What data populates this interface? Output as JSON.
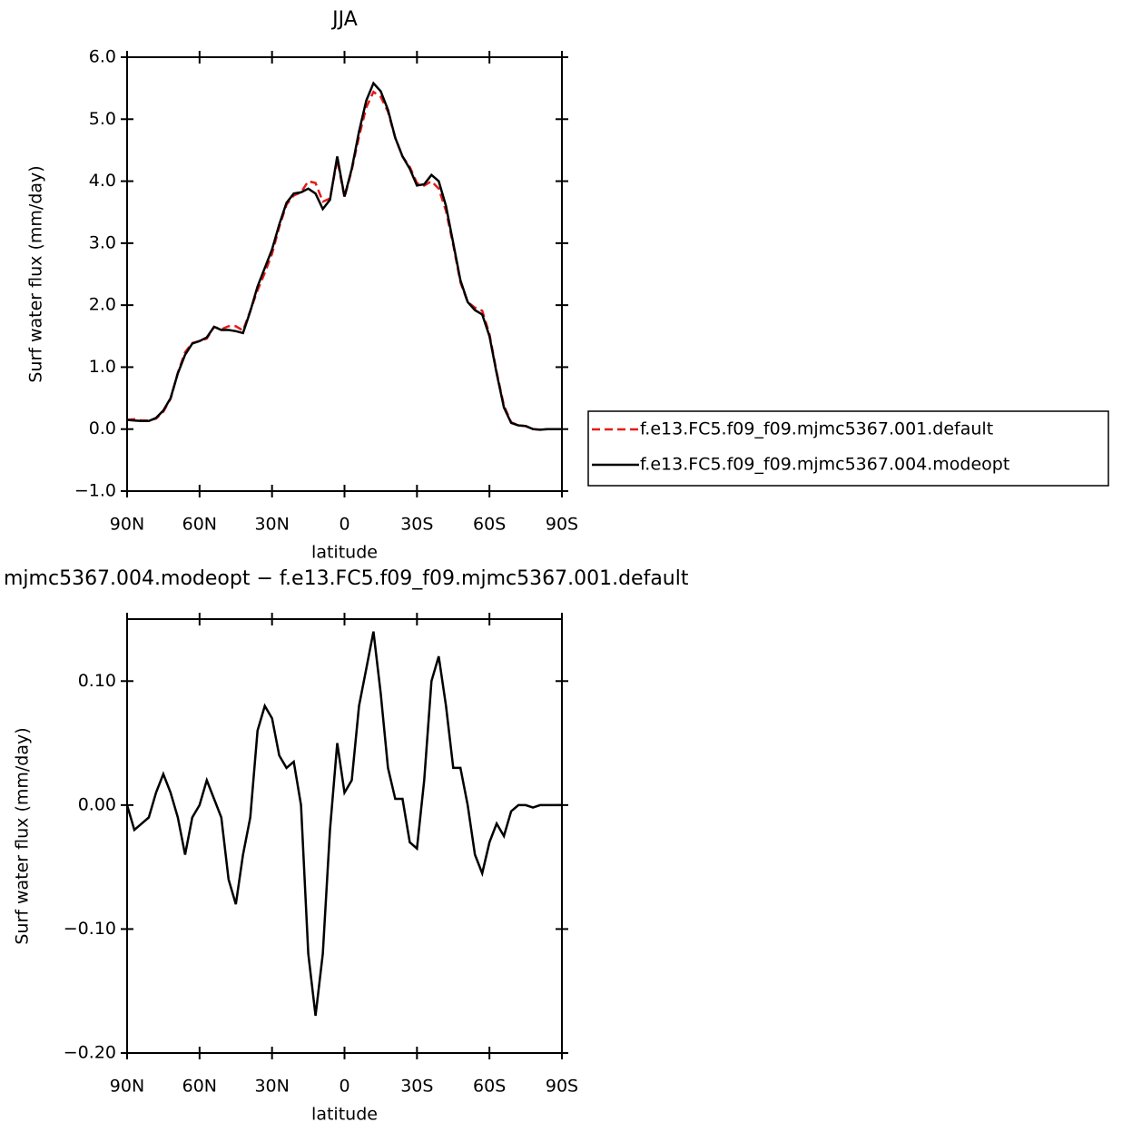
{
  "chart_data": [
    {
      "type": "line",
      "title": "JJA",
      "xlabel": "latitude",
      "ylabel": "Surf water flux (mm/day)",
      "x": [
        90,
        87,
        84,
        81,
        78,
        75,
        72,
        69,
        66,
        63,
        60,
        57,
        54,
        51,
        48,
        45,
        42,
        39,
        36,
        33,
        30,
        27,
        24,
        21,
        18,
        15,
        12,
        9,
        6,
        3,
        0,
        -3,
        -6,
        -9,
        -12,
        -15,
        -18,
        -21,
        -24,
        -27,
        -30,
        -33,
        -36,
        -39,
        -42,
        -45,
        -48,
        -51,
        -54,
        -57,
        -60,
        -63,
        -66,
        -69,
        -72,
        -75,
        -78,
        -81,
        -84,
        -87,
        -90
      ],
      "series": [
        {
          "name": "f.e13.FC5.f09_f09.mjmc5367.001.default",
          "color": "#e41a1c",
          "linestyle": "dashed",
          "values": [
            0.15,
            0.16,
            0.14,
            0.14,
            0.17,
            0.28,
            0.49,
            0.91,
            1.24,
            1.39,
            1.42,
            1.46,
            1.65,
            1.61,
            1.66,
            1.66,
            1.59,
            1.91,
            2.24,
            2.52,
            2.83,
            3.26,
            3.62,
            3.77,
            3.82,
            4.0,
            3.97,
            3.67,
            3.72,
            4.35,
            3.74,
            4.18,
            4.72,
            5.19,
            5.44,
            5.36,
            5.12,
            4.7,
            4.4,
            4.23,
            3.97,
            3.93,
            4.0,
            3.88,
            3.52,
            2.97,
            2.37,
            2.05,
            1.96,
            1.91,
            1.53,
            0.92,
            0.38,
            0.11,
            0.06,
            0.05,
            0.0,
            -0.01,
            0.0,
            0.0,
            0.0
          ]
        },
        {
          "name": "f.e13.FC5.f09_f09.mjmc5367.004.modeopt",
          "color": "#000000",
          "linestyle": "solid",
          "values": [
            0.15,
            0.14,
            0.13,
            0.13,
            0.18,
            0.3,
            0.5,
            0.9,
            1.2,
            1.38,
            1.42,
            1.48,
            1.65,
            1.6,
            1.6,
            1.58,
            1.55,
            1.9,
            2.3,
            2.6,
            2.9,
            3.3,
            3.65,
            3.8,
            3.82,
            3.88,
            3.8,
            3.55,
            3.7,
            4.4,
            3.75,
            4.2,
            4.8,
            5.3,
            5.58,
            5.45,
            5.15,
            4.7,
            4.4,
            4.2,
            3.93,
            3.95,
            4.1,
            4.0,
            3.6,
            3.0,
            2.4,
            2.05,
            1.92,
            1.85,
            1.5,
            0.9,
            0.35,
            0.1,
            0.06,
            0.05,
            0.0,
            -0.01,
            0.0,
            0.0,
            0.0
          ]
        }
      ],
      "xlim": [
        90,
        -90
      ],
      "xticks": [
        {
          "value": 90,
          "label": "90N"
        },
        {
          "value": 60,
          "label": "60N"
        },
        {
          "value": 30,
          "label": "30N"
        },
        0,
        {
          "value": -30,
          "label": "30S"
        },
        {
          "value": -60,
          "label": "60S"
        },
        {
          "value": -90,
          "label": "90S"
        }
      ],
      "ylim": [
        -1,
        6
      ],
      "yticks": [
        {
          "value": -1,
          "label": "−1.0"
        },
        {
          "value": 0,
          "label": "0.0"
        },
        {
          "value": 1,
          "label": "1.0"
        },
        {
          "value": 2,
          "label": "2.0"
        },
        {
          "value": 3,
          "label": "3.0"
        },
        {
          "value": 4,
          "label": "4.0"
        },
        {
          "value": 5,
          "label": "5.0"
        },
        {
          "value": 6,
          "label": "6.0"
        }
      ],
      "legend": "right"
    },
    {
      "type": "line",
      "title": "mjmc5367.004.modeopt − f.e13.FC5.f09_f09.mjmc5367.001.default",
      "xlabel": "latitude",
      "ylabel": "Surf water flux (mm/day)",
      "x": [
        90,
        87,
        84,
        81,
        78,
        75,
        72,
        69,
        66,
        63,
        60,
        57,
        54,
        51,
        48,
        45,
        42,
        39,
        36,
        33,
        30,
        27,
        24,
        21,
        18,
        15,
        12,
        9,
        6,
        3,
        0,
        -3,
        -6,
        -9,
        -12,
        -15,
        -18,
        -21,
        -24,
        -27,
        -30,
        -33,
        -36,
        -39,
        -42,
        -45,
        -48,
        -51,
        -54,
        -57,
        -60,
        -63,
        -66,
        -69,
        -72,
        -75,
        -78,
        -81,
        -84,
        -87,
        -90
      ],
      "series": [
        {
          "color": "#000000",
          "linestyle": "solid",
          "values": [
            0.0,
            -0.02,
            -0.015,
            -0.01,
            0.01,
            0.025,
            0.01,
            -0.01,
            -0.04,
            -0.01,
            0.0,
            0.02,
            0.005,
            -0.01,
            -0.06,
            -0.08,
            -0.04,
            -0.01,
            0.06,
            0.08,
            0.07,
            0.04,
            0.03,
            0.035,
            0.0,
            -0.12,
            -0.17,
            -0.12,
            -0.02,
            0.05,
            0.01,
            0.02,
            0.08,
            0.11,
            0.14,
            0.09,
            0.03,
            0.005,
            0.005,
            -0.03,
            -0.035,
            0.02,
            0.1,
            0.12,
            0.08,
            0.03,
            0.03,
            0.0,
            -0.04,
            -0.055,
            -0.03,
            -0.015,
            -0.025,
            -0.005,
            0.0,
            0.0,
            -0.002,
            0.0,
            0.0,
            0.0,
            0.0
          ]
        }
      ],
      "xlim": [
        90,
        -90
      ],
      "xticks": [
        {
          "value": 90,
          "label": "90N"
        },
        {
          "value": 60,
          "label": "60N"
        },
        {
          "value": 30,
          "label": "30N"
        },
        0,
        {
          "value": -30,
          "label": "30S"
        },
        {
          "value": -60,
          "label": "60S"
        },
        {
          "value": -90,
          "label": "90S"
        }
      ],
      "ylim": [
        -0.2,
        0.15
      ],
      "yticks": [
        {
          "value": -0.2,
          "label": "−0.20"
        },
        {
          "value": -0.1,
          "label": "−0.10"
        },
        {
          "value": 0,
          "label": "0.00"
        },
        {
          "value": 0.1,
          "label": "0.10"
        }
      ]
    }
  ]
}
